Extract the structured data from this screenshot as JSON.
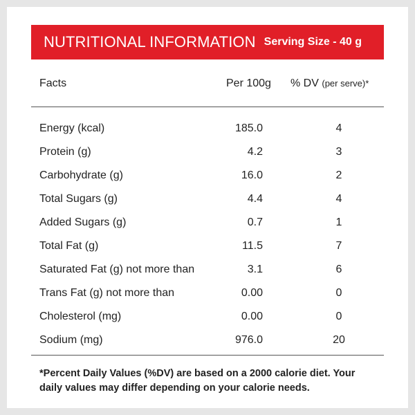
{
  "banner": {
    "title": "NUTRITIONAL INFORMATION",
    "serving": "Serving Size - 40 g",
    "color": "#e11f28"
  },
  "header": {
    "facts": "Facts",
    "per100": "Per 100g",
    "dv": "% DV",
    "dv_sub": "(per serve)*"
  },
  "rows": [
    {
      "name": "Energy (kcal)",
      "per100": "185.0",
      "dv": "4"
    },
    {
      "name": "Protein (g)",
      "per100": "4.2",
      "dv": "3"
    },
    {
      "name": "Carbohydrate (g)",
      "per100": "16.0",
      "dv": "2"
    },
    {
      "name": "Total Sugars (g)",
      "per100": "4.4",
      "dv": "4"
    },
    {
      "name": "Added Sugars (g)",
      "per100": "0.7",
      "dv": "1"
    },
    {
      "name": "Total Fat (g)",
      "per100": "11.5",
      "dv": "7"
    },
    {
      "name": "Saturated Fat (g) not more than",
      "per100": "3.1",
      "dv": "6"
    },
    {
      "name": "Trans Fat (g) not more than",
      "per100": "0.00",
      "dv": "0"
    },
    {
      "name": "Cholesterol (mg)",
      "per100": "0.00",
      "dv": "0"
    },
    {
      "name": "Sodium (mg)",
      "per100": "976.0",
      "dv": "20"
    }
  ],
  "footnote": "*Percent Daily Values (%DV) are based on a 2000 calorie diet. Your daily values may differ depending on your calorie needs."
}
